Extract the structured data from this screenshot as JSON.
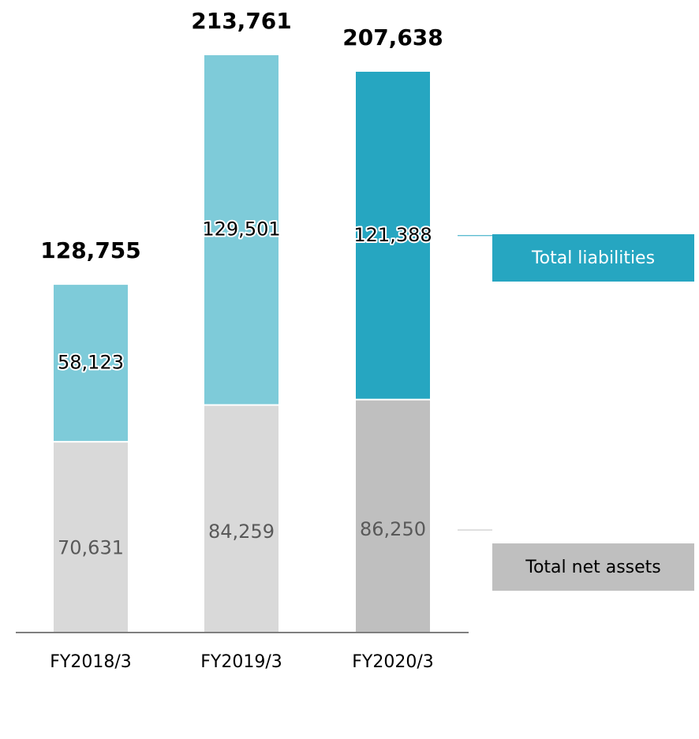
{
  "chart_data": {
    "type": "bar",
    "stacked": true,
    "categories": [
      "FY2018/3",
      "FY2019/3",
      "FY2020/3"
    ],
    "series": [
      {
        "name": "Total net assets",
        "values": [
          70631,
          84259,
          86250
        ]
      },
      {
        "name": "Total liabilities",
        "values": [
          58123,
          129501,
          121388
        ]
      }
    ],
    "value_labels": {
      "net_assets": [
        "70,631",
        "84,259",
        "86,250"
      ],
      "liabilities": [
        "58,123",
        "129,501",
        "121,388"
      ],
      "totals": [
        "128,755",
        "213,761",
        "207,638"
      ]
    },
    "totals": [
      128755,
      213761,
      207638
    ],
    "ylim": [
      0,
      213761
    ],
    "title": "",
    "xlabel": "",
    "ylabel": "",
    "grid": false,
    "legend_placement": "right",
    "colors": {
      "net_assets": [
        "#d9d9d9",
        "#d9d9d9",
        "#bfbfbf"
      ],
      "liabilities": [
        "#7ecbd9",
        "#7ecbd9",
        "#26a6c1"
      ],
      "net_label_text": "#595959",
      "liab_label_text": "#000000",
      "total_label_text": "#000000",
      "axis_line": "#7f7f7f",
      "legend_liabilities_bg": "#26a6c1",
      "legend_liabilities_text": "#ffffff",
      "legend_netassets_bg": "#bfbfbf",
      "legend_netassets_text": "#000000"
    }
  },
  "legend": {
    "liabilities_label": "Total liabilities",
    "net_assets_label": "Total net assets"
  }
}
